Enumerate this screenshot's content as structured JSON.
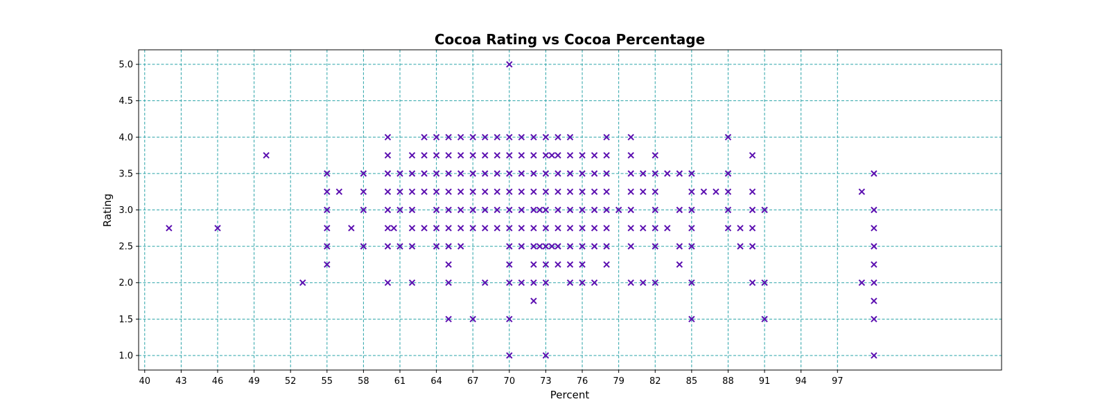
{
  "chart_data": {
    "type": "scatter",
    "title": "Cocoa Rating vs Cocoa Percentage",
    "xlabel": "Percent",
    "ylabel": "Rating",
    "xlim": [
      39.5,
      110.5
    ],
    "ylim": [
      0.8,
      5.2
    ],
    "xticks": [
      40,
      43,
      46,
      49,
      52,
      55,
      58,
      61,
      64,
      67,
      70,
      73,
      76,
      79,
      82,
      85,
      88,
      91,
      94,
      97
    ],
    "yticks": [
      1.0,
      1.5,
      2.0,
      2.5,
      3.0,
      3.5,
      4.0,
      4.5,
      5.0
    ],
    "grid": true,
    "marker": "x",
    "marker_color": "#5b0fb0",
    "grid_color": "#2aa3a8",
    "points": [
      [
        42,
        2.75
      ],
      [
        46,
        2.75
      ],
      [
        50,
        3.75
      ],
      [
        53,
        2.0
      ],
      [
        55,
        2.25
      ],
      [
        55,
        2.5
      ],
      [
        55,
        2.75
      ],
      [
        55,
        3.0
      ],
      [
        55,
        3.25
      ],
      [
        55,
        3.5
      ],
      [
        56,
        3.25
      ],
      [
        57,
        2.75
      ],
      [
        58,
        2.5
      ],
      [
        58,
        3.0
      ],
      [
        58,
        3.25
      ],
      [
        58,
        3.5
      ],
      [
        60,
        2.0
      ],
      [
        60,
        2.5
      ],
      [
        60,
        2.75
      ],
      [
        60,
        3.0
      ],
      [
        60,
        3.25
      ],
      [
        60,
        3.5
      ],
      [
        60,
        3.75
      ],
      [
        60,
        4.0
      ],
      [
        60.5,
        2.75
      ],
      [
        61,
        2.5
      ],
      [
        61,
        3.0
      ],
      [
        61,
        3.25
      ],
      [
        61,
        3.5
      ],
      [
        62,
        2.0
      ],
      [
        62,
        2.5
      ],
      [
        62,
        2.75
      ],
      [
        62,
        3.0
      ],
      [
        62,
        3.25
      ],
      [
        62,
        3.5
      ],
      [
        62,
        3.75
      ],
      [
        63,
        2.75
      ],
      [
        63,
        3.25
      ],
      [
        63,
        3.5
      ],
      [
        63,
        3.75
      ],
      [
        63,
        4.0
      ],
      [
        64,
        2.5
      ],
      [
        64,
        2.75
      ],
      [
        64,
        3.0
      ],
      [
        64,
        3.25
      ],
      [
        64,
        3.5
      ],
      [
        64,
        3.75
      ],
      [
        64,
        4.0
      ],
      [
        65,
        1.5
      ],
      [
        65,
        2.0
      ],
      [
        65,
        2.25
      ],
      [
        65,
        2.5
      ],
      [
        65,
        2.75
      ],
      [
        65,
        3.0
      ],
      [
        65,
        3.25
      ],
      [
        65,
        3.5
      ],
      [
        65,
        3.75
      ],
      [
        65,
        4.0
      ],
      [
        66,
        2.5
      ],
      [
        66,
        2.75
      ],
      [
        66,
        3.0
      ],
      [
        66,
        3.25
      ],
      [
        66,
        3.5
      ],
      [
        66,
        3.75
      ],
      [
        66,
        4.0
      ],
      [
        67,
        1.5
      ],
      [
        67,
        2.75
      ],
      [
        67,
        3.0
      ],
      [
        67,
        3.25
      ],
      [
        67,
        3.5
      ],
      [
        67,
        3.75
      ],
      [
        67,
        4.0
      ],
      [
        68,
        2.0
      ],
      [
        68,
        2.75
      ],
      [
        68,
        3.0
      ],
      [
        68,
        3.25
      ],
      [
        68,
        3.5
      ],
      [
        68,
        3.75
      ],
      [
        68,
        4.0
      ],
      [
        69,
        2.75
      ],
      [
        69,
        3.0
      ],
      [
        69,
        3.25
      ],
      [
        69,
        3.5
      ],
      [
        69,
        3.75
      ],
      [
        69,
        4.0
      ],
      [
        70,
        1.0
      ],
      [
        70,
        1.5
      ],
      [
        70,
        2.0
      ],
      [
        70,
        2.25
      ],
      [
        70,
        2.5
      ],
      [
        70,
        2.75
      ],
      [
        70,
        3.0
      ],
      [
        70,
        3.25
      ],
      [
        70,
        3.5
      ],
      [
        70,
        3.75
      ],
      [
        70,
        4.0
      ],
      [
        70,
        5.0
      ],
      [
        71,
        2.0
      ],
      [
        71,
        2.5
      ],
      [
        71,
        2.75
      ],
      [
        71,
        3.0
      ],
      [
        71,
        3.25
      ],
      [
        71,
        3.5
      ],
      [
        71,
        3.75
      ],
      [
        71,
        4.0
      ],
      [
        72,
        1.75
      ],
      [
        72,
        2.0
      ],
      [
        72,
        2.25
      ],
      [
        72,
        2.5
      ],
      [
        72,
        2.75
      ],
      [
        72,
        3.0
      ],
      [
        72,
        3.25
      ],
      [
        72,
        3.5
      ],
      [
        72,
        3.75
      ],
      [
        72,
        4.0
      ],
      [
        72.5,
        2.5
      ],
      [
        72.5,
        3.0
      ],
      [
        73,
        1.0
      ],
      [
        73,
        2.0
      ],
      [
        73,
        2.25
      ],
      [
        73,
        2.5
      ],
      [
        73,
        2.75
      ],
      [
        73,
        3.0
      ],
      [
        73,
        3.25
      ],
      [
        73,
        3.5
      ],
      [
        73,
        3.75
      ],
      [
        73,
        4.0
      ],
      [
        73.5,
        2.5
      ],
      [
        73.5,
        3.75
      ],
      [
        74,
        2.25
      ],
      [
        74,
        2.5
      ],
      [
        74,
        2.75
      ],
      [
        74,
        3.0
      ],
      [
        74,
        3.25
      ],
      [
        74,
        3.5
      ],
      [
        74,
        3.75
      ],
      [
        74,
        4.0
      ],
      [
        75,
        2.0
      ],
      [
        75,
        2.25
      ],
      [
        75,
        2.5
      ],
      [
        75,
        2.75
      ],
      [
        75,
        3.0
      ],
      [
        75,
        3.25
      ],
      [
        75,
        3.5
      ],
      [
        75,
        3.75
      ],
      [
        75,
        4.0
      ],
      [
        76,
        2.0
      ],
      [
        76,
        2.25
      ],
      [
        76,
        2.5
      ],
      [
        76,
        2.75
      ],
      [
        76,
        3.0
      ],
      [
        76,
        3.25
      ],
      [
        76,
        3.5
      ],
      [
        76,
        3.75
      ],
      [
        77,
        2.0
      ],
      [
        77,
        2.5
      ],
      [
        77,
        2.75
      ],
      [
        77,
        3.0
      ],
      [
        77,
        3.25
      ],
      [
        77,
        3.5
      ],
      [
        77,
        3.75
      ],
      [
        78,
        2.25
      ],
      [
        78,
        2.5
      ],
      [
        78,
        2.75
      ],
      [
        78,
        3.0
      ],
      [
        78,
        3.25
      ],
      [
        78,
        3.5
      ],
      [
        78,
        3.75
      ],
      [
        78,
        4.0
      ],
      [
        79,
        3.0
      ],
      [
        80,
        2.0
      ],
      [
        80,
        2.5
      ],
      [
        80,
        2.75
      ],
      [
        80,
        3.0
      ],
      [
        80,
        3.25
      ],
      [
        80,
        3.5
      ],
      [
        80,
        3.75
      ],
      [
        80,
        4.0
      ],
      [
        81,
        2.0
      ],
      [
        81,
        2.75
      ],
      [
        81,
        3.25
      ],
      [
        81,
        3.5
      ],
      [
        82,
        2.0
      ],
      [
        82,
        2.5
      ],
      [
        82,
        2.75
      ],
      [
        82,
        3.0
      ],
      [
        82,
        3.25
      ],
      [
        82,
        3.5
      ],
      [
        82,
        3.75
      ],
      [
        83,
        2.75
      ],
      [
        83,
        3.5
      ],
      [
        84,
        2.25
      ],
      [
        84,
        2.5
      ],
      [
        84,
        3.0
      ],
      [
        84,
        3.5
      ],
      [
        85,
        1.5
      ],
      [
        85,
        2.0
      ],
      [
        85,
        2.5
      ],
      [
        85,
        2.75
      ],
      [
        85,
        3.0
      ],
      [
        85,
        3.25
      ],
      [
        85,
        3.5
      ],
      [
        86,
        3.25
      ],
      [
        87,
        3.25
      ],
      [
        88,
        2.75
      ],
      [
        88,
        3.0
      ],
      [
        88,
        3.25
      ],
      [
        88,
        3.5
      ],
      [
        88,
        4.0
      ],
      [
        89,
        2.5
      ],
      [
        89,
        2.75
      ],
      [
        90,
        2.0
      ],
      [
        90,
        2.5
      ],
      [
        90,
        2.75
      ],
      [
        90,
        3.0
      ],
      [
        90,
        3.25
      ],
      [
        90,
        3.75
      ],
      [
        91,
        1.5
      ],
      [
        91,
        2.0
      ],
      [
        91,
        3.0
      ],
      [
        99,
        2.0
      ],
      [
        99,
        3.25
      ],
      [
        100,
        1.0
      ],
      [
        100,
        1.5
      ],
      [
        100,
        1.75
      ],
      [
        100,
        2.0
      ],
      [
        100,
        2.25
      ],
      [
        100,
        2.5
      ],
      [
        100,
        2.75
      ],
      [
        100,
        3.0
      ],
      [
        100,
        3.5
      ]
    ]
  }
}
